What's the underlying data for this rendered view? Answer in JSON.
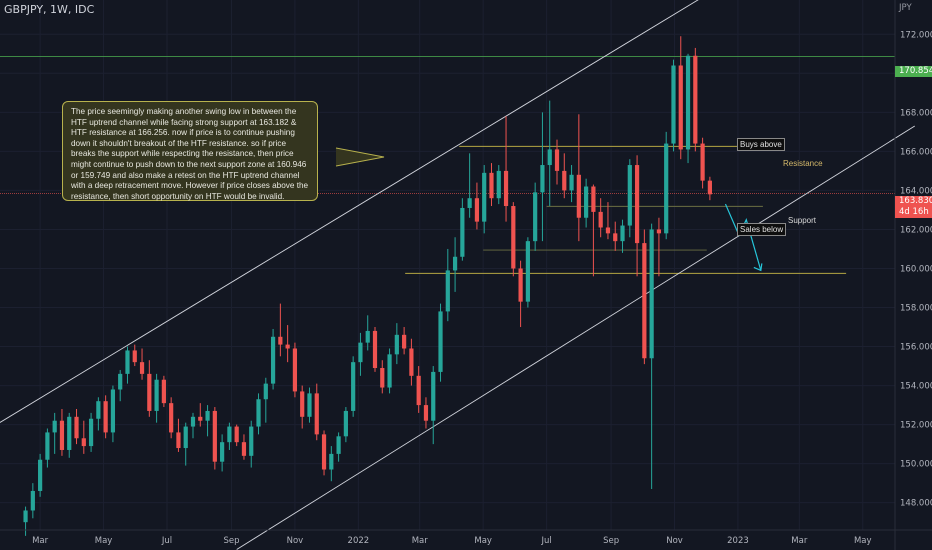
{
  "header": {
    "symbol": "GBPJPY, 1W, IDC",
    "currency": "JPY"
  },
  "annotation": {
    "text": "The price seemingly making another swing low in between the HTF uptrend channel while facing strong support at 163.182 & HTF resistance at 166.256. now if price is to continue pushing down it shouldn't breakout of the HTF resistance. so if price breaks the support while respecting the resistance, then price might continue to push down to the next support zone at 160.946 or 159.749 and also make a retest on the HTF uptrend channel with a deep retracement move. However if price closes above the resistance, then short opportunity on HTF would be invalid."
  },
  "labels": {
    "buys_above": "Buys above",
    "resistance": "Resistance",
    "support": "Support",
    "sales_below": "Sales below"
  },
  "price_labels": {
    "high": "170.854",
    "current": "163.830",
    "countdown": "4d 16h"
  },
  "colors": {
    "background": "#131722",
    "bull": "#26a69a",
    "bear": "#ef5350",
    "level_line": "#b5a642",
    "high_line": "#4caf50",
    "current_line": "#ef5350",
    "channel": "#d1d4dc",
    "arrow": "#26c6da"
  },
  "chart_data": {
    "type": "candlestick",
    "title": "GBPJPY, 1W, IDC",
    "y_unit": "JPY",
    "ylim": [
      146.6,
      173.5
    ],
    "y_ticks": [
      "172.000",
      "170.000",
      "168.000",
      "166.000",
      "164.000",
      "162.000",
      "160.000",
      "158.000",
      "156.000",
      "154.000",
      "152.000",
      "150.000",
      "148.000"
    ],
    "x_ticks": [
      "Mar",
      "May",
      "Jul",
      "Sep",
      "Nov",
      "2022",
      "Mar",
      "May",
      "Jul",
      "Sep",
      "Nov",
      "2023",
      "Mar",
      "May"
    ],
    "x_range": [
      "2021-02-01",
      "2023-06-01"
    ],
    "levels": {
      "resistance": 166.256,
      "support": 163.182,
      "support_zone_1": 160.946,
      "support_zone_2": 159.749,
      "high": 170.854,
      "current": 163.83
    },
    "candles": [
      {
        "date": "2021-02-15",
        "open": 147.0,
        "high": 147.8,
        "low": 146.3,
        "close": 147.6
      },
      {
        "date": "2021-02-22",
        "open": 147.6,
        "high": 149.0,
        "low": 147.2,
        "close": 148.6
      },
      {
        "date": "2021-03-01",
        "open": 148.6,
        "high": 150.5,
        "low": 148.3,
        "close": 150.2
      },
      {
        "date": "2021-03-08",
        "open": 150.2,
        "high": 151.8,
        "low": 149.8,
        "close": 151.6
      },
      {
        "date": "2021-03-15",
        "open": 151.6,
        "high": 152.6,
        "low": 150.5,
        "close": 152.2
      },
      {
        "date": "2021-03-22",
        "open": 152.2,
        "high": 152.8,
        "low": 150.4,
        "close": 150.7
      },
      {
        "date": "2021-03-29",
        "open": 150.7,
        "high": 152.6,
        "low": 150.3,
        "close": 152.4
      },
      {
        "date": "2021-04-05",
        "open": 152.4,
        "high": 152.8,
        "low": 151.0,
        "close": 151.3
      },
      {
        "date": "2021-04-12",
        "open": 151.3,
        "high": 152.2,
        "low": 150.5,
        "close": 150.9
      },
      {
        "date": "2021-04-19",
        "open": 150.9,
        "high": 152.6,
        "low": 150.6,
        "close": 152.3
      },
      {
        "date": "2021-04-26",
        "open": 152.3,
        "high": 153.4,
        "low": 151.7,
        "close": 153.2
      },
      {
        "date": "2021-05-03",
        "open": 153.2,
        "high": 153.5,
        "low": 151.3,
        "close": 151.6
      },
      {
        "date": "2021-05-10",
        "open": 151.6,
        "high": 154.0,
        "low": 151.1,
        "close": 153.8
      },
      {
        "date": "2021-05-17",
        "open": 153.8,
        "high": 154.8,
        "low": 153.2,
        "close": 154.6
      },
      {
        "date": "2021-05-24",
        "open": 154.6,
        "high": 156.0,
        "low": 154.1,
        "close": 155.8
      },
      {
        "date": "2021-05-31",
        "open": 155.8,
        "high": 156.1,
        "low": 155.0,
        "close": 155.2
      },
      {
        "date": "2021-06-07",
        "open": 155.2,
        "high": 155.9,
        "low": 154.3,
        "close": 154.6
      },
      {
        "date": "2021-06-14",
        "open": 154.6,
        "high": 155.3,
        "low": 152.4,
        "close": 152.7
      },
      {
        "date": "2021-06-21",
        "open": 152.7,
        "high": 154.6,
        "low": 152.1,
        "close": 154.3
      },
      {
        "date": "2021-06-28",
        "open": 154.3,
        "high": 154.5,
        "low": 152.9,
        "close": 153.1
      },
      {
        "date": "2021-07-05",
        "open": 153.1,
        "high": 153.4,
        "low": 151.3,
        "close": 151.6
      },
      {
        "date": "2021-07-12",
        "open": 151.6,
        "high": 152.3,
        "low": 150.6,
        "close": 150.8
      },
      {
        "date": "2021-07-19",
        "open": 150.8,
        "high": 152.1,
        "low": 149.9,
        "close": 151.9
      },
      {
        "date": "2021-07-26",
        "open": 151.9,
        "high": 152.6,
        "low": 151.3,
        "close": 152.4
      },
      {
        "date": "2021-08-02",
        "open": 152.4,
        "high": 153.1,
        "low": 151.9,
        "close": 152.2
      },
      {
        "date": "2021-08-09",
        "open": 152.2,
        "high": 153.0,
        "low": 151.4,
        "close": 152.7
      },
      {
        "date": "2021-08-16",
        "open": 152.7,
        "high": 152.9,
        "low": 149.7,
        "close": 150.1
      },
      {
        "date": "2021-08-23",
        "open": 150.1,
        "high": 151.5,
        "low": 149.6,
        "close": 151.1
      },
      {
        "date": "2021-08-30",
        "open": 151.1,
        "high": 152.1,
        "low": 150.7,
        "close": 151.9
      },
      {
        "date": "2021-09-06",
        "open": 151.9,
        "high": 152.0,
        "low": 150.9,
        "close": 151.1
      },
      {
        "date": "2021-09-13",
        "open": 151.1,
        "high": 151.5,
        "low": 150.2,
        "close": 150.4
      },
      {
        "date": "2021-09-20",
        "open": 150.4,
        "high": 152.2,
        "low": 149.8,
        "close": 151.9
      },
      {
        "date": "2021-09-27",
        "open": 151.9,
        "high": 153.6,
        "low": 151.5,
        "close": 153.3
      },
      {
        "date": "2021-10-04",
        "open": 153.3,
        "high": 154.4,
        "low": 152.1,
        "close": 154.1
      },
      {
        "date": "2021-10-11",
        "open": 154.1,
        "high": 156.9,
        "low": 153.8,
        "close": 156.5
      },
      {
        "date": "2021-10-18",
        "open": 156.5,
        "high": 158.2,
        "low": 155.5,
        "close": 156.1
      },
      {
        "date": "2021-10-25",
        "open": 156.1,
        "high": 157.1,
        "low": 155.2,
        "close": 155.9
      },
      {
        "date": "2021-11-01",
        "open": 155.9,
        "high": 156.2,
        "low": 153.4,
        "close": 153.7
      },
      {
        "date": "2021-11-08",
        "open": 153.7,
        "high": 154.0,
        "low": 151.8,
        "close": 152.4
      },
      {
        "date": "2021-11-15",
        "open": 152.4,
        "high": 153.9,
        "low": 152.1,
        "close": 153.6
      },
      {
        "date": "2021-11-22",
        "open": 153.6,
        "high": 154.1,
        "low": 151.2,
        "close": 151.5
      },
      {
        "date": "2021-11-29",
        "open": 151.5,
        "high": 151.7,
        "low": 149.4,
        "close": 149.7
      },
      {
        "date": "2021-12-06",
        "open": 149.7,
        "high": 150.9,
        "low": 149.1,
        "close": 150.5
      },
      {
        "date": "2021-12-13",
        "open": 150.5,
        "high": 151.6,
        "low": 150.1,
        "close": 151.4
      },
      {
        "date": "2021-12-20",
        "open": 151.4,
        "high": 152.9,
        "low": 151.1,
        "close": 152.7
      },
      {
        "date": "2021-12-27",
        "open": 152.7,
        "high": 155.5,
        "low": 152.4,
        "close": 155.2
      },
      {
        "date": "2022-01-03",
        "open": 155.2,
        "high": 156.7,
        "low": 154.5,
        "close": 156.2
      },
      {
        "date": "2022-01-10",
        "open": 156.2,
        "high": 157.6,
        "low": 155.8,
        "close": 156.8
      },
      {
        "date": "2022-01-17",
        "open": 156.8,
        "high": 157.0,
        "low": 154.7,
        "close": 154.9
      },
      {
        "date": "2022-01-24",
        "open": 154.9,
        "high": 155.3,
        "low": 153.6,
        "close": 153.9
      },
      {
        "date": "2022-01-31",
        "open": 153.9,
        "high": 155.9,
        "low": 153.6,
        "close": 155.6
      },
      {
        "date": "2022-02-07",
        "open": 155.6,
        "high": 157.2,
        "low": 155.1,
        "close": 156.6
      },
      {
        "date": "2022-02-14",
        "open": 156.6,
        "high": 157.0,
        "low": 155.6,
        "close": 155.9
      },
      {
        "date": "2022-02-21",
        "open": 155.9,
        "high": 156.4,
        "low": 154.0,
        "close": 154.5
      },
      {
        "date": "2022-02-28",
        "open": 154.5,
        "high": 155.0,
        "low": 152.6,
        "close": 153.0
      },
      {
        "date": "2022-03-07",
        "open": 153.0,
        "high": 153.4,
        "low": 151.8,
        "close": 152.2
      },
      {
        "date": "2022-03-14",
        "open": 152.2,
        "high": 155.0,
        "low": 151.0,
        "close": 154.7
      },
      {
        "date": "2022-03-21",
        "open": 154.7,
        "high": 158.2,
        "low": 154.2,
        "close": 157.8
      },
      {
        "date": "2022-03-28",
        "open": 157.8,
        "high": 161.0,
        "low": 157.3,
        "close": 159.9
      },
      {
        "date": "2022-04-04",
        "open": 159.9,
        "high": 161.6,
        "low": 158.8,
        "close": 160.6
      },
      {
        "date": "2022-04-11",
        "open": 160.6,
        "high": 163.6,
        "low": 160.4,
        "close": 163.1
      },
      {
        "date": "2022-04-18",
        "open": 163.1,
        "high": 165.9,
        "low": 162.6,
        "close": 163.6
      },
      {
        "date": "2022-04-25",
        "open": 163.6,
        "high": 164.4,
        "low": 162.0,
        "close": 162.4
      },
      {
        "date": "2022-05-02",
        "open": 162.4,
        "high": 165.3,
        "low": 161.8,
        "close": 164.9
      },
      {
        "date": "2022-05-09",
        "open": 164.9,
        "high": 165.4,
        "low": 163.2,
        "close": 163.6
      },
      {
        "date": "2022-05-16",
        "open": 163.6,
        "high": 165.3,
        "low": 163.3,
        "close": 165.0
      },
      {
        "date": "2022-05-23",
        "open": 165.0,
        "high": 167.8,
        "low": 162.4,
        "close": 163.2
      },
      {
        "date": "2022-05-30",
        "open": 163.2,
        "high": 163.4,
        "low": 159.6,
        "close": 160.0
      },
      {
        "date": "2022-06-06",
        "open": 160.0,
        "high": 160.4,
        "low": 157.0,
        "close": 158.3
      },
      {
        "date": "2022-06-13",
        "open": 158.3,
        "high": 161.6,
        "low": 158.0,
        "close": 161.4
      },
      {
        "date": "2022-06-20",
        "open": 161.4,
        "high": 164.4,
        "low": 160.9,
        "close": 163.9
      },
      {
        "date": "2022-06-27",
        "open": 163.9,
        "high": 168.0,
        "low": 161.4,
        "close": 165.3
      },
      {
        "date": "2022-07-04",
        "open": 165.3,
        "high": 168.6,
        "low": 163.2,
        "close": 166.1
      },
      {
        "date": "2022-07-11",
        "open": 166.1,
        "high": 166.6,
        "low": 164.3,
        "close": 165.0
      },
      {
        "date": "2022-07-18",
        "open": 165.0,
        "high": 165.9,
        "low": 163.6,
        "close": 164.0
      },
      {
        "date": "2022-07-25",
        "open": 164.0,
        "high": 165.3,
        "low": 163.4,
        "close": 164.8
      },
      {
        "date": "2022-08-01",
        "open": 164.8,
        "high": 167.9,
        "low": 161.4,
        "close": 162.6
      },
      {
        "date": "2022-08-08",
        "open": 162.6,
        "high": 164.6,
        "low": 162.1,
        "close": 164.2
      },
      {
        "date": "2022-08-15",
        "open": 164.2,
        "high": 164.3,
        "low": 159.6,
        "close": 162.9
      },
      {
        "date": "2022-08-22",
        "open": 162.9,
        "high": 163.6,
        "low": 161.6,
        "close": 162.1
      },
      {
        "date": "2022-08-29",
        "open": 162.1,
        "high": 163.4,
        "low": 161.5,
        "close": 161.8
      },
      {
        "date": "2022-09-05",
        "open": 161.8,
        "high": 162.4,
        "low": 160.9,
        "close": 161.4
      },
      {
        "date": "2022-09-12",
        "open": 161.4,
        "high": 162.5,
        "low": 160.8,
        "close": 162.2
      },
      {
        "date": "2022-09-19",
        "open": 162.2,
        "high": 165.6,
        "low": 161.6,
        "close": 165.3
      },
      {
        "date": "2022-09-26",
        "open": 165.3,
        "high": 165.8,
        "low": 159.6,
        "close": 161.3
      },
      {
        "date": "2022-10-03",
        "open": 161.3,
        "high": 162.0,
        "low": 155.1,
        "close": 155.4
      },
      {
        "date": "2022-10-10",
        "open": 155.4,
        "high": 162.3,
        "low": 148.7,
        "close": 162.0
      },
      {
        "date": "2022-10-17",
        "open": 162.0,
        "high": 162.6,
        "low": 159.6,
        "close": 161.8
      },
      {
        "date": "2022-10-24",
        "open": 161.8,
        "high": 167.0,
        "low": 161.5,
        "close": 166.4
      },
      {
        "date": "2022-10-31",
        "open": 166.4,
        "high": 170.7,
        "low": 166.0,
        "close": 170.4
      },
      {
        "date": "2022-11-07",
        "open": 170.4,
        "high": 171.9,
        "low": 165.6,
        "close": 166.1
      },
      {
        "date": "2022-11-14",
        "open": 166.1,
        "high": 171.0,
        "low": 165.4,
        "close": 170.9
      },
      {
        "date": "2022-11-21",
        "open": 170.9,
        "high": 171.3,
        "low": 166.0,
        "close": 166.4
      },
      {
        "date": "2022-11-28",
        "open": 166.4,
        "high": 166.7,
        "low": 164.1,
        "close": 164.5
      },
      {
        "date": "2022-12-05",
        "open": 164.5,
        "high": 164.7,
        "low": 163.5,
        "close": 163.8
      }
    ]
  }
}
